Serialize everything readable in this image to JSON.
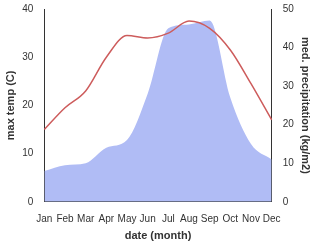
{
  "chart_data": {
    "type": "line",
    "x_label": "date (month)",
    "y_label": "max temp (C)",
    "y2_label": "med. precipitation (kg/m2)",
    "categories": [
      "Jan",
      "Feb",
      "Mar",
      "Apr",
      "May",
      "Jun",
      "Jul",
      "Aug",
      "Sep",
      "Oct",
      "Nov",
      "Dec"
    ],
    "series": [
      {
        "name": "med. precipitation",
        "type": "area",
        "axis": "y2",
        "color": "#b0bcf5",
        "values": [
          8,
          9.5,
          10,
          14,
          16,
          28,
          45,
          46,
          47,
          27,
          15,
          11
        ]
      },
      {
        "name": "max temp",
        "type": "line",
        "color": "#cd5c5c",
        "values": [
          15,
          19.5,
          23,
          30,
          34.5,
          34,
          35,
          37.5,
          36,
          31.5,
          24.5,
          17
        ]
      }
    ],
    "ylim": [
      0,
      40
    ],
    "yticks": [
      0,
      10,
      20,
      30,
      40
    ],
    "y2lim": [
      0,
      50
    ],
    "y2ticks": [
      0,
      10,
      20,
      30,
      40,
      50
    ],
    "grid": false
  }
}
